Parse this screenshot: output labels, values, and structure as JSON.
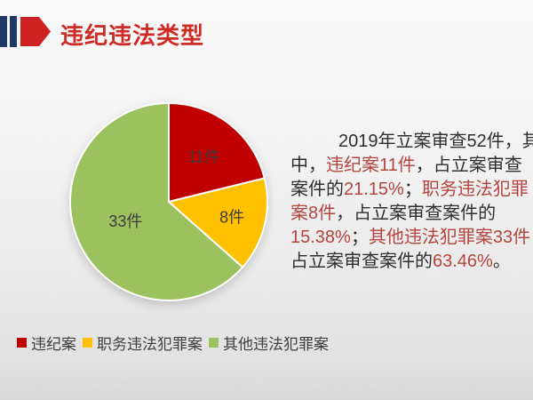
{
  "header": {
    "title": "违纪违法类型",
    "icon": "flag-arrow-icon",
    "accent_navy": "#1f3864",
    "accent_red": "#ce2b25"
  },
  "chart_data": {
    "type": "pie",
    "title": "违纪违法类型",
    "unit": "件",
    "total": 52,
    "categories": [
      "违纪案",
      "职务违法犯罪案",
      "其他违法犯罪案"
    ],
    "values": [
      11,
      8,
      33
    ],
    "percentages": [
      "21.15%",
      "15.38%",
      "63.46%"
    ],
    "colors": [
      "#c00000",
      "#ffc000",
      "#9cc25f"
    ],
    "slice_labels": [
      "11件",
      "8件",
      "33件"
    ],
    "start_angle": "12-o'clock",
    "direction": "clockwise",
    "legend_position": "bottom-left"
  },
  "paragraph": {
    "lines": [
      {
        "indent": true,
        "runs": [
          {
            "text": "2019年立案审查52件，其",
            "color": "dark"
          }
        ]
      },
      {
        "indent": false,
        "runs": [
          {
            "text": "中，",
            "color": "dark"
          },
          {
            "text": "违纪案11件",
            "color": "red"
          },
          {
            "text": "，占立案审查",
            "color": "dark"
          }
        ]
      },
      {
        "indent": false,
        "runs": [
          {
            "text": "案件的",
            "color": "dark"
          },
          {
            "text": "21.15%",
            "color": "red"
          },
          {
            "text": "；",
            "color": "dark"
          },
          {
            "text": "职务违法犯罪",
            "color": "red"
          }
        ]
      },
      {
        "indent": false,
        "runs": [
          {
            "text": "案8件",
            "color": "red"
          },
          {
            "text": "，占立案审查案件的",
            "color": "dark"
          }
        ]
      },
      {
        "indent": false,
        "runs": [
          {
            "text": "15.38%",
            "color": "red"
          },
          {
            "text": "；",
            "color": "dark"
          },
          {
            "text": "其他违法犯罪案33件",
            "color": "red"
          },
          {
            "text": "，",
            "color": "dark"
          }
        ]
      },
      {
        "indent": false,
        "runs": [
          {
            "text": "占立案审查案件的",
            "color": "dark"
          },
          {
            "text": "63.46%",
            "color": "red"
          },
          {
            "text": "。",
            "color": "dark"
          }
        ]
      }
    ],
    "red_hex": "#b2453e",
    "dark_hex": "#2e2e2e"
  }
}
